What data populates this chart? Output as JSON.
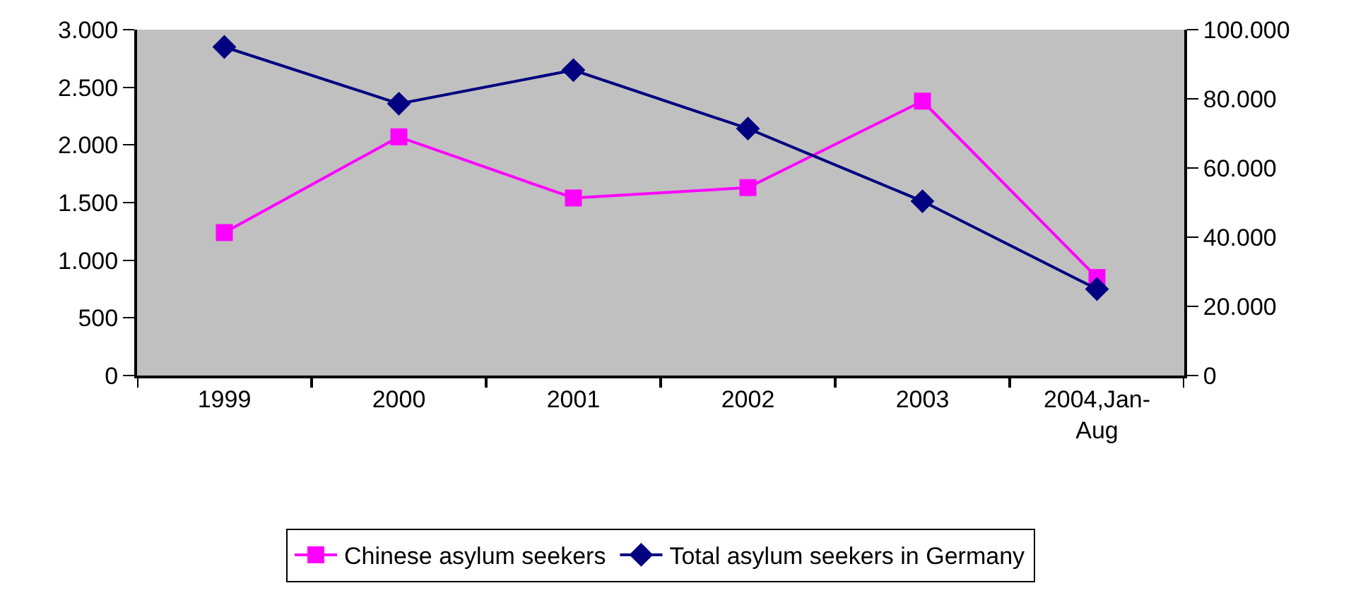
{
  "chart_data": {
    "type": "line",
    "categories": [
      "1999",
      "2000",
      "2001",
      "2002",
      "2003",
      "2004,Jan-\nAug"
    ],
    "series": [
      {
        "name": "Chinese asylum seekers",
        "color": "#ff00ff",
        "marker": "square",
        "values": [
          1240,
          2070,
          1540,
          1630,
          2380,
          850
        ]
      },
      {
        "name": "Total asylum seekers in Germany",
        "color": "#000080",
        "marker": "diamond",
        "axis": "y2",
        "values": [
          95000,
          78600,
          88300,
          71400,
          50400,
          25000
        ]
      }
    ],
    "ylim": [
      0,
      3000
    ],
    "yticks": [
      0,
      500,
      {
        "value": 1000,
        "label": "1.000"
      },
      {
        "value": 1500,
        "label": "1.500"
      },
      {
        "value": 2000,
        "label": "2.000"
      },
      {
        "value": 2500,
        "label": "2.500"
      },
      {
        "value": 3000,
        "label": "3.000"
      }
    ],
    "y2lim": [
      0,
      100000
    ],
    "y2ticks": [
      0,
      {
        "value": 20000,
        "label": "20.000"
      },
      {
        "value": 40000,
        "label": "40.000"
      },
      {
        "value": 60000,
        "label": "60.000"
      },
      {
        "value": 80000,
        "label": "80.000"
      },
      {
        "value": 100000,
        "label": "100.000"
      }
    ],
    "grid": false,
    "legend": "bottom",
    "line_style": "solid"
  }
}
